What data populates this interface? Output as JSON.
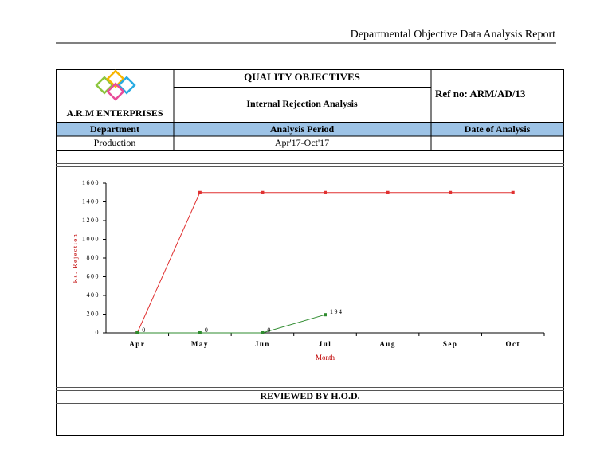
{
  "header": {
    "report_title": "Departmental Objective Data Analysis Report"
  },
  "logo": {
    "company": "A.R.M ENTERPRISES"
  },
  "table": {
    "title": "QUALITY OBJECTIVES",
    "subtitle": "Internal Rejection Analysis",
    "ref": "Ref no: ARM/AD/13",
    "headers": [
      "Department",
      "Analysis Period",
      "Date of Analysis"
    ],
    "rows": [
      [
        "Production",
        "Apr'17-Oct'17"
      ]
    ]
  },
  "chart_data": {
    "type": "line",
    "x_label": "Month",
    "y_label": "Rs. Rejection",
    "categories": [
      "Apr",
      "May",
      "Jun",
      "Jul",
      "Aug",
      "Sep",
      "Oct"
    ],
    "series": [
      {
        "color": "#e03030",
        "values": [
          0,
          1500,
          1500,
          1500,
          1500,
          1500,
          1500
        ]
      },
      {
        "color": "#2e8b2e",
        "values": [
          0,
          0,
          0,
          194,
          null,
          null,
          null
        ],
        "data_labels": true
      }
    ],
    "ylim": [
      0,
      1600
    ],
    "yticks": [
      0,
      200,
      400,
      600,
      800,
      1000,
      1200,
      1400,
      1600
    ]
  },
  "footer": {
    "reviewed": "REVIEWED BY H.O.D."
  }
}
